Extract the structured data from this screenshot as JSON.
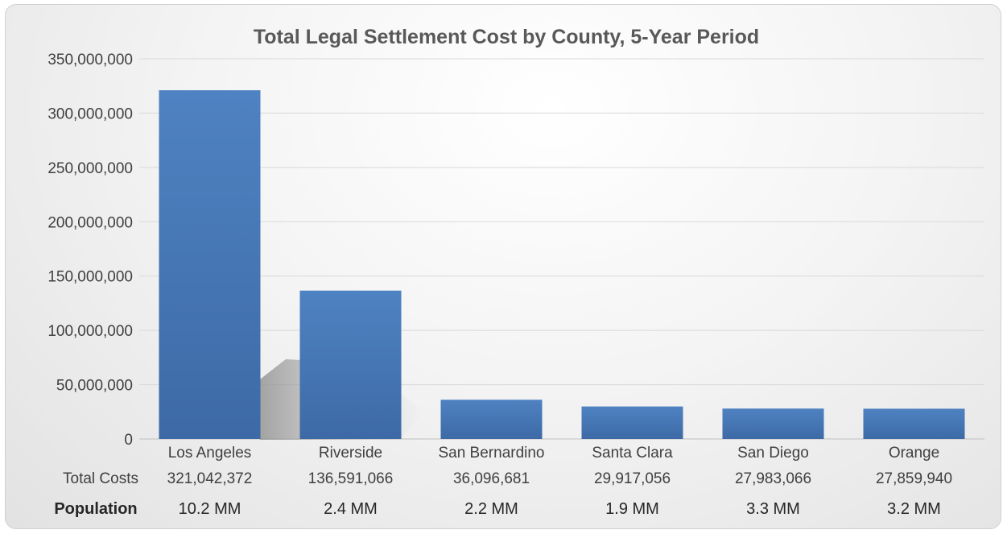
{
  "chart_data": {
    "type": "bar",
    "title": "Total Legal Settlement Cost by County, 5-Year Period",
    "categories": [
      "Los Angeles",
      "Riverside",
      "San Bernardino",
      "Santa Clara",
      "San Diego",
      "Orange"
    ],
    "series": [
      {
        "name": "Total Costs",
        "values": [
          321042372,
          136591066,
          36096681,
          29917056,
          27983066,
          27859940
        ],
        "labels": [
          "321,042,372",
          "136,591,066",
          "36,096,681",
          "29,917,056",
          "27,983,066",
          "27,859,940"
        ]
      }
    ],
    "ylim": [
      0,
      350000000
    ],
    "yticks": [
      "0",
      "50,000,000",
      "100,000,000",
      "150,000,000",
      "200,000,000",
      "250,000,000",
      "300,000,000",
      "350,000,000"
    ],
    "grid": true,
    "bar_color": "#4a7ab9",
    "data_table": {
      "row1_label": "Total Costs",
      "row2_label": "Population",
      "population": [
        "10.2 MM",
        "2.4 MM",
        "2.2 MM",
        "1.9 MM",
        "3.3 MM",
        "3.2 MM"
      ]
    }
  }
}
